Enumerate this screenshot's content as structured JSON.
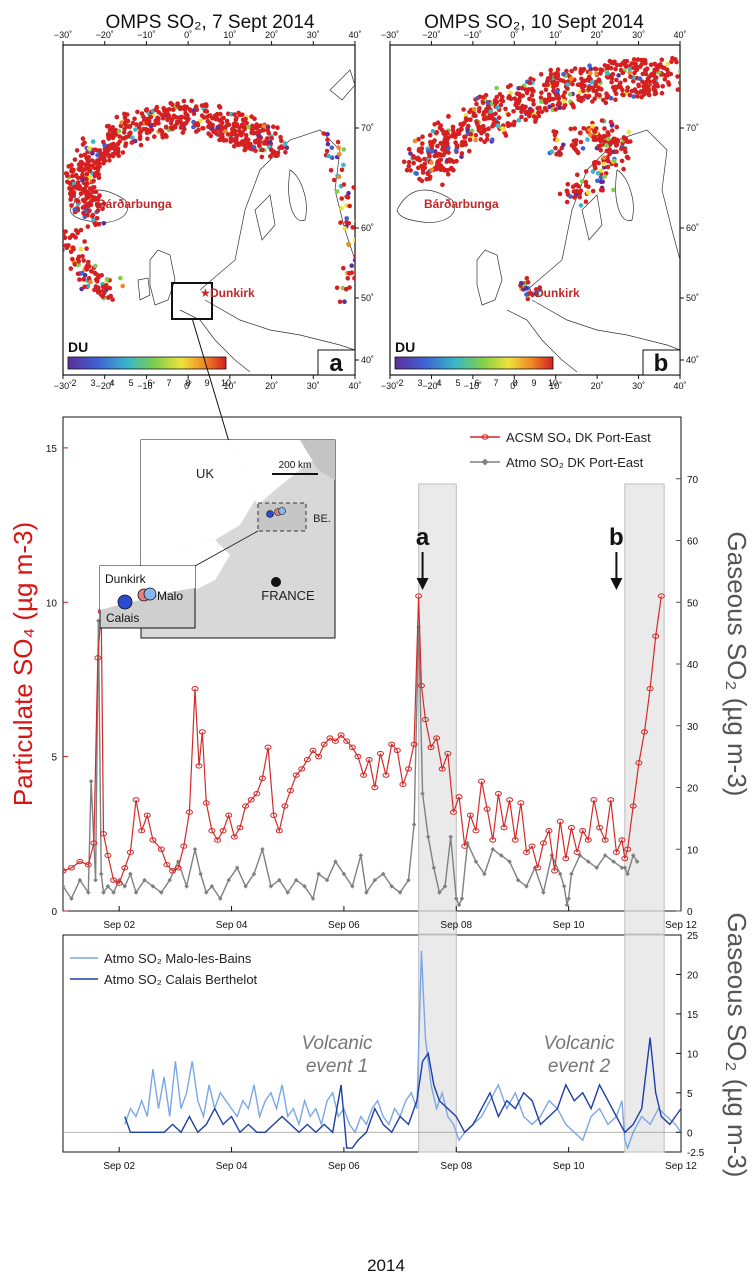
{
  "maps": [
    {
      "title": "OMPS SO₂, 7 Sept 2014",
      "panel_letter": "a",
      "cb_label": "DU",
      "volcano_label": "Bárðarbunga",
      "city_label": "Dunkirk"
    },
    {
      "title": "OMPS SO₂, 10 Sept 2014",
      "panel_letter": "b",
      "cb_label": "DU",
      "volcano_label": "Bárðarbunga",
      "city_label": "Dunkirk"
    }
  ],
  "map_lon_ticks": [
    "−30˚",
    "−20˚",
    "−10˚",
    "0˚",
    "10˚",
    "20˚",
    "30˚",
    "40˚"
  ],
  "map_lat_ticks": [
    "70˚",
    "60˚",
    "50˚",
    "40˚"
  ],
  "colorbar_ticks": [
    "2",
    "3",
    "4",
    "5",
    "6",
    "7",
    "8",
    "9",
    "10"
  ],
  "inset": {
    "scale_label": "200 km",
    "uk_label": "UK",
    "be_label": "BE.",
    "france_label": "FRANCE",
    "zoom_labels": {
      "dunkirk": "Dunkirk",
      "malo": "Malo",
      "calais": "Calais"
    }
  },
  "event_markers": [
    "a",
    "b"
  ],
  "events": [
    {
      "line1": "Volcanic",
      "line2": "event 1"
    },
    {
      "line1": "Volcanic",
      "line2": "event 2"
    }
  ],
  "year_label": "2014",
  "chart_data": [
    {
      "type": "line",
      "xlabel": "",
      "ylabel": "Particulate SO₄ (µg m-3)",
      "y2label": "Gaseous SO₂ (µg m-3)",
      "x_ticks": [
        "Sep 02",
        "Sep 04",
        "Sep 06",
        "Sep 08",
        "Sep 10",
        "Sep 12"
      ],
      "x_tick_days": [
        2,
        4,
        6,
        8,
        10,
        12
      ],
      "xlim": [
        1,
        12
      ],
      "ylim": [
        0,
        16
      ],
      "y_ticks": [
        0,
        5,
        10,
        15
      ],
      "y2lim": [
        0,
        80
      ],
      "y2_ticks": [
        0,
        10,
        20,
        30,
        40,
        50,
        60,
        70
      ],
      "legend_position": "top-right",
      "event_bands": [
        [
          7.33,
          8.0
        ],
        [
          11.0,
          11.7
        ]
      ],
      "series": [
        {
          "name": "ACSM SO₄ DK Port-East",
          "axis": "left",
          "color": "#d42a2a",
          "x": [
            1.0,
            1.15,
            1.3,
            1.45,
            1.55,
            1.62,
            1.68,
            1.72,
            1.8,
            1.9,
            2.0,
            2.1,
            2.2,
            2.3,
            2.4,
            2.5,
            2.6,
            2.75,
            2.85,
            2.95,
            3.05,
            3.15,
            3.25,
            3.35,
            3.42,
            3.48,
            3.55,
            3.65,
            3.75,
            3.85,
            3.95,
            4.05,
            4.15,
            4.25,
            4.35,
            4.45,
            4.55,
            4.65,
            4.75,
            4.85,
            4.95,
            5.05,
            5.15,
            5.25,
            5.35,
            5.45,
            5.55,
            5.65,
            5.75,
            5.85,
            5.95,
            6.05,
            6.15,
            6.25,
            6.35,
            6.45,
            6.55,
            6.65,
            6.75,
            6.85,
            6.95,
            7.05,
            7.15,
            7.25,
            7.33,
            7.38,
            7.45,
            7.55,
            7.65,
            7.75,
            7.85,
            7.95,
            8.05,
            8.15,
            8.25,
            8.35,
            8.45,
            8.55,
            8.65,
            8.75,
            8.85,
            8.95,
            9.05,
            9.15,
            9.25,
            9.35,
            9.45,
            9.55,
            9.65,
            9.75,
            9.85,
            9.95,
            10.05,
            10.15,
            10.25,
            10.35,
            10.45,
            10.55,
            10.65,
            10.75,
            10.85,
            10.95,
            11.0,
            11.05,
            11.15,
            11.25,
            11.35,
            11.45,
            11.55,
            11.65
          ],
          "values": [
            1.3,
            1.4,
            1.6,
            1.5,
            2.2,
            8.2,
            9.7,
            2.5,
            1.8,
            1.0,
            0.9,
            1.4,
            1.9,
            3.6,
            2.6,
            3.1,
            2.3,
            2.0,
            1.5,
            1.3,
            1.4,
            2.1,
            3.2,
            7.2,
            4.7,
            5.8,
            3.5,
            2.6,
            2.3,
            2.6,
            3.1,
            2.4,
            2.7,
            3.4,
            3.6,
            3.8,
            4.3,
            5.3,
            3.1,
            2.6,
            3.4,
            3.9,
            4.4,
            4.6,
            4.9,
            5.2,
            5.0,
            5.4,
            5.6,
            5.5,
            5.7,
            5.5,
            5.3,
            5.0,
            4.4,
            4.9,
            4.0,
            5.1,
            4.4,
            5.4,
            5.2,
            4.1,
            4.6,
            5.4,
            10.2,
            7.3,
            6.2,
            5.3,
            5.6,
            4.6,
            5.1,
            3.2,
            3.7,
            2.1,
            3.1,
            2.6,
            4.2,
            3.3,
            2.3,
            3.8,
            2.7,
            3.6,
            2.3,
            3.5,
            1.9,
            2.1,
            1.4,
            2.2,
            2.6,
            1.3,
            2.9,
            1.7,
            2.7,
            1.9,
            2.6,
            2.3,
            3.6,
            2.7,
            2.3,
            3.6,
            1.9,
            2.3,
            1.7,
            2.0,
            3.4,
            4.8,
            5.8,
            7.2,
            8.9,
            10.2
          ]
        },
        {
          "name": "Atmo SO₂ DK Port-East",
          "axis": "right",
          "color": "#808080",
          "x": [
            1.0,
            1.15,
            1.3,
            1.45,
            1.5,
            1.58,
            1.63,
            1.68,
            1.72,
            1.8,
            1.9,
            2.0,
            2.1,
            2.2,
            2.3,
            2.45,
            2.6,
            2.75,
            2.9,
            3.05,
            3.2,
            3.35,
            3.45,
            3.55,
            3.65,
            3.8,
            3.95,
            4.1,
            4.25,
            4.4,
            4.55,
            4.7,
            4.85,
            5.0,
            5.15,
            5.3,
            5.45,
            5.55,
            5.7,
            5.85,
            6.0,
            6.15,
            6.3,
            6.4,
            6.55,
            6.7,
            6.85,
            7.0,
            7.15,
            7.25,
            7.33,
            7.4,
            7.5,
            7.6,
            7.7,
            7.8,
            7.9,
            8.0,
            8.05,
            8.1,
            8.2,
            8.35,
            8.5,
            8.65,
            8.8,
            8.95,
            9.1,
            9.25,
            9.4,
            9.55,
            9.7,
            9.85,
            9.92,
            9.97,
            10.0,
            10.05,
            10.2,
            10.35,
            10.5,
            10.65,
            10.8,
            10.95,
            11.0,
            11.05,
            11.15,
            11.22
          ],
          "values": [
            4,
            2,
            5,
            3,
            21,
            5,
            47,
            6,
            3,
            4,
            3,
            5,
            4,
            6,
            3,
            5,
            4,
            3,
            5,
            8,
            4,
            10,
            6,
            3,
            4,
            2,
            5,
            7,
            4,
            6,
            10,
            4,
            5,
            3,
            5,
            4,
            2,
            6,
            5,
            8,
            6,
            4,
            9,
            3,
            5,
            6,
            4,
            3,
            5,
            14,
            46,
            19,
            12,
            7,
            3,
            4,
            12,
            2,
            1,
            2,
            11,
            8,
            6,
            10,
            9,
            8,
            5,
            4,
            7,
            3,
            9,
            6,
            4,
            1,
            2,
            6,
            9,
            8,
            7,
            9,
            8,
            7,
            7,
            6,
            9,
            8
          ]
        }
      ]
    },
    {
      "type": "line",
      "xlabel": "2014",
      "ylabel": "",
      "y2label": "Gaseous SO₂ (µg m-3)",
      "x_ticks": [
        "Sep 02",
        "Sep 04",
        "Sep 06",
        "Sep 08",
        "Sep 10",
        "Sep 12"
      ],
      "x_tick_days": [
        2,
        4,
        6,
        8,
        10,
        12
      ],
      "xlim": [
        1,
        12
      ],
      "y2lim": [
        -2.5,
        25
      ],
      "y2_ticks": [
        "-2.5",
        "0",
        "5",
        "10",
        "15",
        "20",
        "25"
      ],
      "legend_position": "top-left",
      "event_bands": [
        [
          7.33,
          8.0
        ],
        [
          11.0,
          11.7
        ]
      ],
      "series": [
        {
          "name": "Atmo SO₂ Malo-les-Bains",
          "color": "#7aa7e6",
          "x": [
            2.1,
            2.2,
            2.3,
            2.4,
            2.5,
            2.6,
            2.7,
            2.8,
            2.9,
            3.0,
            3.1,
            3.2,
            3.3,
            3.4,
            3.5,
            3.6,
            3.7,
            3.8,
            3.9,
            4.0,
            4.1,
            4.2,
            4.3,
            4.4,
            4.5,
            4.6,
            4.7,
            4.8,
            4.9,
            5.0,
            5.1,
            5.2,
            5.3,
            5.4,
            5.5,
            5.6,
            5.7,
            5.8,
            5.9,
            6.0,
            6.1,
            6.2,
            6.3,
            6.4,
            6.5,
            6.6,
            6.7,
            6.8,
            6.9,
            7.0,
            7.1,
            7.2,
            7.3,
            7.38,
            7.45,
            7.55,
            7.65,
            7.75,
            7.85,
            7.95,
            8.05,
            8.15,
            8.3,
            8.45,
            8.6,
            8.75,
            8.9,
            9.05,
            9.2,
            9.35,
            9.5,
            9.65,
            9.8,
            9.95,
            10.1,
            10.25,
            10.4,
            10.55,
            10.7,
            10.85,
            10.95,
            11.0,
            11.05,
            11.15,
            11.3,
            11.45,
            11.6,
            11.75,
            11.9,
            12.0
          ],
          "values": [
            1,
            3,
            2,
            4,
            2,
            8,
            3,
            7,
            2,
            9,
            3,
            5,
            9,
            4,
            2,
            6,
            3,
            5,
            4,
            3,
            2,
            4,
            3,
            6,
            2,
            4,
            5,
            3,
            6,
            2,
            3,
            1,
            4,
            2,
            3,
            1,
            4,
            5,
            2,
            3,
            1,
            0,
            2,
            1,
            3,
            4,
            2,
            1,
            3,
            2,
            4,
            5,
            3,
            23,
            12,
            6,
            3,
            5,
            2,
            1,
            -1,
            0,
            1,
            2,
            4,
            6,
            3,
            5,
            2,
            1,
            2,
            4,
            3,
            1,
            0,
            -1,
            2,
            3,
            1,
            2,
            4,
            -1,
            -2,
            0,
            2,
            1,
            3,
            2,
            1,
            0
          ]
        },
        {
          "name": "Atmo SO₂ Calais Berthelot",
          "color": "#1d3fa6",
          "x": [
            2.1,
            2.2,
            2.35,
            2.5,
            2.65,
            2.8,
            2.95,
            3.1,
            3.25,
            3.4,
            3.55,
            3.7,
            3.85,
            4.0,
            4.15,
            4.3,
            4.45,
            4.6,
            4.75,
            4.9,
            5.05,
            5.2,
            5.35,
            5.5,
            5.65,
            5.8,
            5.95,
            6.05,
            6.15,
            6.25,
            6.4,
            6.55,
            6.7,
            6.85,
            7.0,
            7.15,
            7.3,
            7.4,
            7.5,
            7.6,
            7.7,
            7.85,
            8.0,
            8.15,
            8.3,
            8.45,
            8.6,
            8.75,
            8.9,
            9.05,
            9.2,
            9.35,
            9.5,
            9.65,
            9.8,
            9.95,
            10.1,
            10.25,
            10.4,
            10.55,
            10.7,
            10.85,
            11.0,
            11.15,
            11.3,
            11.45,
            11.55,
            11.65,
            11.8,
            12.0
          ],
          "values": [
            2,
            0,
            0,
            0,
            0,
            0,
            1,
            0,
            2,
            0,
            1,
            3,
            1,
            2,
            0,
            1,
            0,
            0,
            1,
            2,
            1,
            0,
            1,
            0,
            1,
            0,
            6,
            -2,
            -2,
            -1,
            0,
            3,
            1,
            0,
            2,
            1,
            4,
            9,
            10,
            6,
            4,
            3,
            2,
            0,
            1,
            3,
            5,
            2,
            4,
            3,
            5,
            4,
            1,
            2,
            3,
            6,
            4,
            5,
            3,
            6,
            4,
            2,
            0,
            1,
            3,
            12,
            5,
            2,
            1,
            3
          ]
        }
      ]
    }
  ]
}
